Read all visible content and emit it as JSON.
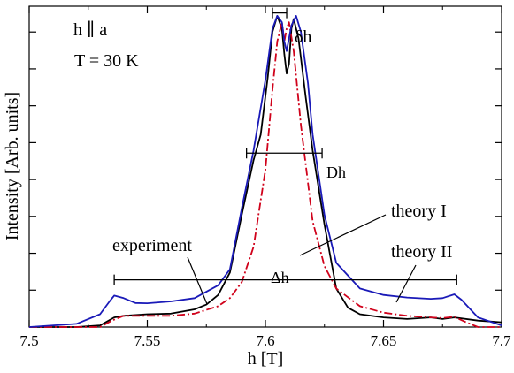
{
  "chart_data": {
    "type": "line",
    "xlabel": "h [T]",
    "ylabel": "Intensity [Arb. units]",
    "xlim": [
      7.5,
      7.7
    ],
    "ylim": [
      0,
      1.0
    ],
    "x_ticks": [
      7.5,
      7.55,
      7.6,
      7.65,
      7.7
    ],
    "x_tick_labels": [
      "7.5",
      "7.55",
      "7.6",
      "7.65",
      "7.7"
    ],
    "y_ticks_count": 8,
    "grid": false,
    "legend": "none",
    "annotations": {
      "condition_line1": "h ∥ a",
      "condition_line2": "T = 30 K",
      "delta_small": "δh",
      "D_width": "Dh",
      "Delta_width": "Δh",
      "label_experiment": "experiment",
      "label_theory1": "theory I",
      "label_theory2": "theory II"
    },
    "markers": {
      "delta_small": {
        "x1": 7.603,
        "x2": 7.609,
        "y": 0.979
      },
      "D_width": {
        "x1": 7.592,
        "x2": 7.624,
        "y": 0.542
      },
      "Delta_width": {
        "x1": 7.536,
        "x2": 7.681,
        "y": 0.147
      }
    },
    "series": [
      {
        "name": "experiment",
        "color": "#000000",
        "style": "solid",
        "points": [
          [
            7.5,
            0.0
          ],
          [
            7.52,
            0.0
          ],
          [
            7.53,
            0.005
          ],
          [
            7.536,
            0.03
          ],
          [
            7.54,
            0.035
          ],
          [
            7.55,
            0.04
          ],
          [
            7.56,
            0.042
          ],
          [
            7.57,
            0.055
          ],
          [
            7.575,
            0.07
          ],
          [
            7.58,
            0.1
          ],
          [
            7.585,
            0.17
          ],
          [
            7.59,
            0.35
          ],
          [
            7.595,
            0.52
          ],
          [
            7.598,
            0.6
          ],
          [
            7.601,
            0.78
          ],
          [
            7.603,
            0.92
          ],
          [
            7.605,
            0.97
          ],
          [
            7.607,
            0.93
          ],
          [
            7.608,
            0.85
          ],
          [
            7.609,
            0.79
          ],
          [
            7.61,
            0.82
          ],
          [
            7.611,
            0.93
          ],
          [
            7.612,
            0.96
          ],
          [
            7.614,
            0.9
          ],
          [
            7.617,
            0.72
          ],
          [
            7.62,
            0.55
          ],
          [
            7.625,
            0.32
          ],
          [
            7.63,
            0.12
          ],
          [
            7.635,
            0.06
          ],
          [
            7.64,
            0.04
          ],
          [
            7.65,
            0.03
          ],
          [
            7.66,
            0.025
          ],
          [
            7.67,
            0.03
          ],
          [
            7.675,
            0.025
          ],
          [
            7.68,
            0.03
          ],
          [
            7.69,
            0.02
          ],
          [
            7.7,
            0.015
          ]
        ]
      },
      {
        "name": "theory I",
        "color": "#d0021b",
        "style": "dash-dot",
        "points": [
          [
            7.5,
            0.0
          ],
          [
            7.53,
            0.0
          ],
          [
            7.535,
            0.02
          ],
          [
            7.54,
            0.035
          ],
          [
            7.55,
            0.035
          ],
          [
            7.56,
            0.035
          ],
          [
            7.57,
            0.042
          ],
          [
            7.58,
            0.065
          ],
          [
            7.585,
            0.09
          ],
          [
            7.59,
            0.14
          ],
          [
            7.595,
            0.25
          ],
          [
            7.6,
            0.49
          ],
          [
            7.603,
            0.74
          ],
          [
            7.605,
            0.89
          ],
          [
            7.607,
            0.95
          ],
          [
            7.608,
            0.89
          ],
          [
            7.609,
            0.93
          ],
          [
            7.61,
            0.95
          ],
          [
            7.612,
            0.86
          ],
          [
            7.615,
            0.63
          ],
          [
            7.62,
            0.33
          ],
          [
            7.625,
            0.19
          ],
          [
            7.63,
            0.12
          ],
          [
            7.64,
            0.065
          ],
          [
            7.65,
            0.045
          ],
          [
            7.66,
            0.035
          ],
          [
            7.67,
            0.03
          ],
          [
            7.675,
            0.028
          ],
          [
            7.68,
            0.032
          ],
          [
            7.685,
            0.015
          ],
          [
            7.69,
            0.0
          ],
          [
            7.7,
            0.0
          ]
        ]
      },
      {
        "name": "theory II",
        "color": "#1a1ab8",
        "style": "solid",
        "points": [
          [
            7.5,
            0.0
          ],
          [
            7.52,
            0.01
          ],
          [
            7.53,
            0.04
          ],
          [
            7.534,
            0.08
          ],
          [
            7.536,
            0.098
          ],
          [
            7.54,
            0.09
          ],
          [
            7.545,
            0.075
          ],
          [
            7.55,
            0.074
          ],
          [
            7.56,
            0.08
          ],
          [
            7.57,
            0.09
          ],
          [
            7.58,
            0.13
          ],
          [
            7.585,
            0.18
          ],
          [
            7.59,
            0.37
          ],
          [
            7.595,
            0.55
          ],
          [
            7.6,
            0.77
          ],
          [
            7.603,
            0.93
          ],
          [
            7.605,
            0.97
          ],
          [
            7.607,
            0.95
          ],
          [
            7.608,
            0.89
          ],
          [
            7.609,
            0.86
          ],
          [
            7.611,
            0.94
          ],
          [
            7.613,
            0.97
          ],
          [
            7.615,
            0.92
          ],
          [
            7.618,
            0.76
          ],
          [
            7.62,
            0.6
          ],
          [
            7.625,
            0.35
          ],
          [
            7.63,
            0.2
          ],
          [
            7.64,
            0.12
          ],
          [
            7.65,
            0.1
          ],
          [
            7.66,
            0.092
          ],
          [
            7.67,
            0.088
          ],
          [
            7.675,
            0.09
          ],
          [
            7.68,
            0.102
          ],
          [
            7.683,
            0.085
          ],
          [
            7.69,
            0.03
          ],
          [
            7.7,
            0.005
          ]
        ]
      }
    ]
  }
}
